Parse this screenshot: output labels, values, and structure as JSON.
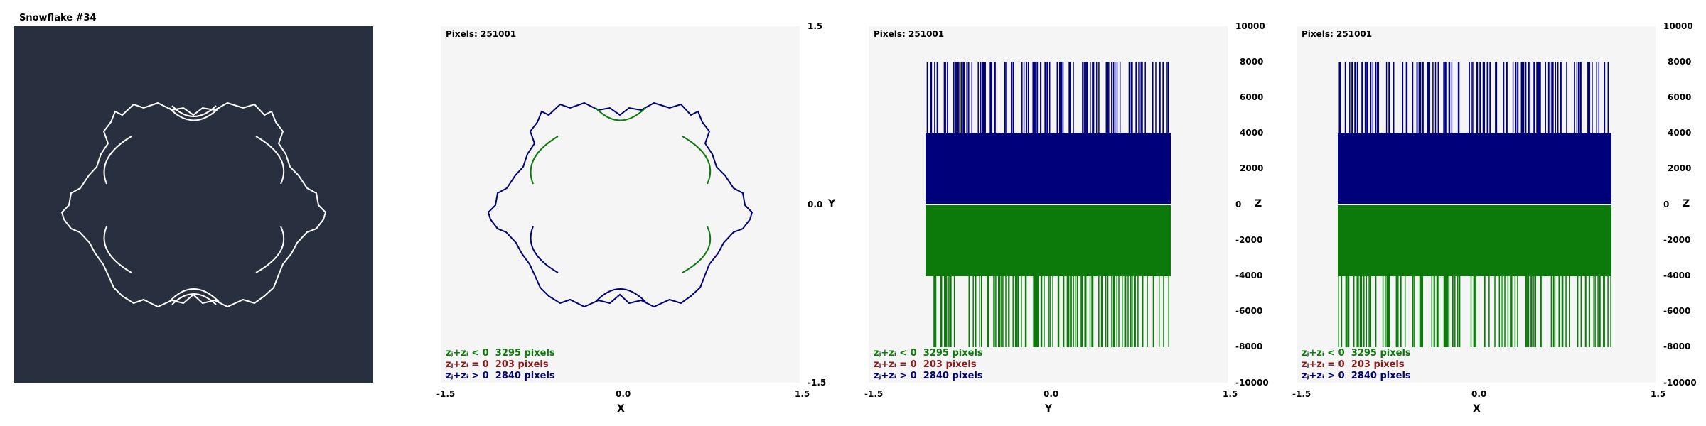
{
  "window": {
    "title": "Snowflake #34"
  },
  "colors": {
    "background": "#283040",
    "plot_background": "#f5f5f5",
    "negative": "#0b7a0b",
    "zero": "#8b1a1a",
    "positive": "#00007a",
    "curve_light": "#ffffff"
  },
  "legend": [
    {
      "label": "zⱼ+zᵢ < 0",
      "count_text": "3295 pixels",
      "color": "#0b7a0b"
    },
    {
      "label": "zⱼ+zᵢ = 0",
      "count_text": "203 pixels",
      "color": "#8b1a1a"
    },
    {
      "label": "zⱼ+zᵢ > 0",
      "count_text": "2840 pixels",
      "color": "#00007a"
    }
  ],
  "views": [
    {
      "name": "xy-view",
      "pixels_label": "Pixels: 251001",
      "x_axis": {
        "name": "X",
        "ticks": [
          "-1.5",
          "0.0",
          "1.5"
        ]
      },
      "y_axis": {
        "name": "Y",
        "ticks": [
          "1.5",
          "0.0",
          "-1.5"
        ]
      }
    },
    {
      "name": "yz-view",
      "pixels_label": "Pixels: 251001",
      "x_axis": {
        "name": "Y",
        "ticks": [
          "-1.5",
          "0.0",
          "1.5"
        ]
      },
      "y_axis": {
        "name": "Z",
        "ticks": [
          "10000",
          "8000",
          "6000",
          "4000",
          "2000",
          "0",
          "-2000",
          "-4000",
          "-6000",
          "-8000",
          "-10000"
        ]
      }
    },
    {
      "name": "xz-view",
      "pixels_label": "Pixels: 251001",
      "x_axis": {
        "name": "X",
        "ticks": [
          "-1.5",
          "0.0",
          "1.5"
        ]
      },
      "y_axis": {
        "name": "Z",
        "ticks": [
          "10000",
          "8000",
          "6000",
          "4000",
          "2000",
          "0",
          "-2000",
          "-4000",
          "-6000",
          "-8000",
          "-10000"
        ]
      }
    }
  ]
}
